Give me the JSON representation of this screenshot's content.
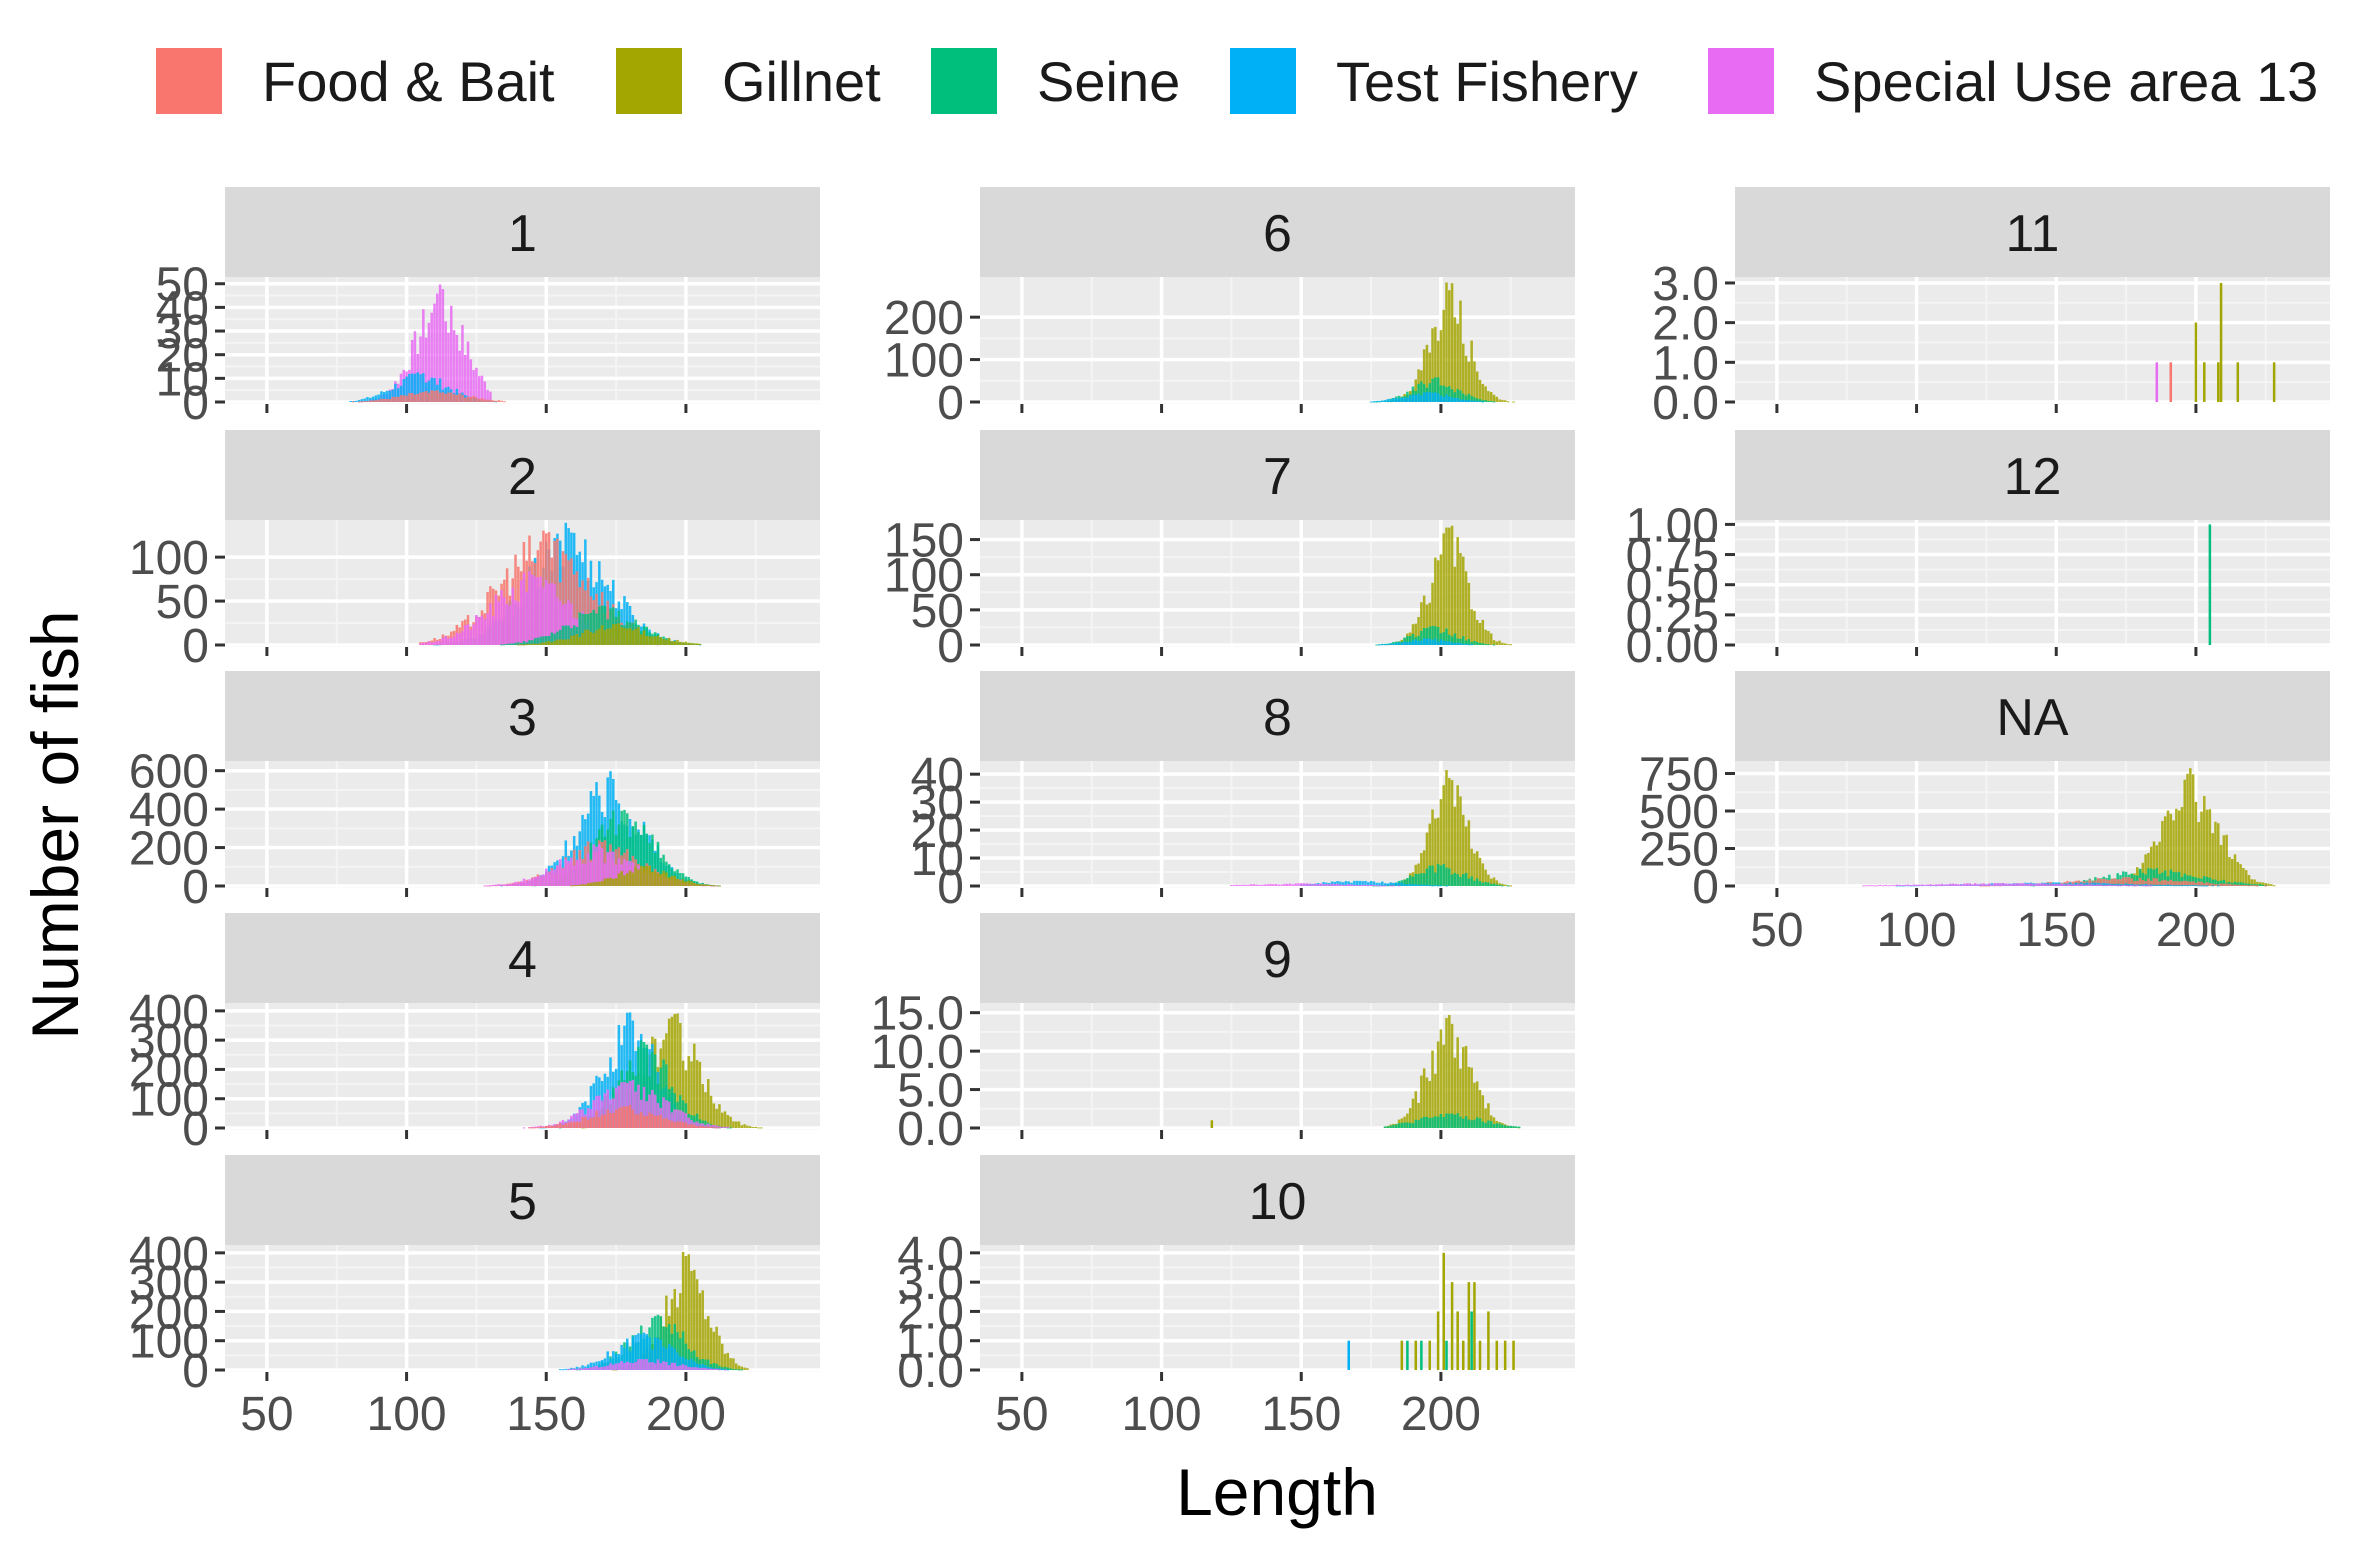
{
  "chart_data": {
    "type": "bar",
    "xlabel": "Length",
    "ylabel": "Number of fish",
    "legend_position": "top",
    "grid": true,
    "panel_background": "#ebebeb",
    "strip_background": "#d9d9d9",
    "series": [
      {
        "name": "Food & Bait",
        "color": "#F8766D"
      },
      {
        "name": "Gillnet",
        "color": "#A3A500"
      },
      {
        "name": "Seine",
        "color": "#00BF7D"
      },
      {
        "name": "Test Fishery",
        "color": "#00B0F6"
      },
      {
        "name": "Special Use area 13",
        "color": "#E76BF3"
      }
    ],
    "x_ticks": [
      "50",
      "100",
      "150",
      "200"
    ],
    "xlim": [
      35,
      248
    ],
    "panels": [
      {
        "label": "1",
        "ylim": [
          0,
          52
        ],
        "y_ticks": [
          {
            "v": 0,
            "t": "0"
          },
          {
            "v": 10,
            "t": "10"
          },
          {
            "v": 20,
            "t": "20"
          },
          {
            "v": 30,
            "t": "30"
          },
          {
            "v": 40,
            "t": "40"
          },
          {
            "v": 50,
            "t": "50"
          }
        ],
        "groups": [
          {
            "series": "Special Use area 13",
            "center": 112,
            "sd": 9,
            "peak": 50,
            "xmin": 80,
            "xmax": 130
          },
          {
            "series": "Test Fishery",
            "center": 105,
            "sd": 10,
            "peak": 13,
            "xmin": 80,
            "xmax": 170
          },
          {
            "series": "Food & Bait",
            "center": 110,
            "sd": 12,
            "peak": 5,
            "xmin": 80,
            "xmax": 135
          }
        ]
      },
      {
        "label": "2",
        "ylim": [
          0,
          140
        ],
        "y_ticks": [
          {
            "v": 0,
            "t": "0"
          },
          {
            "v": 50,
            "t": "50"
          },
          {
            "v": 100,
            "t": "100"
          }
        ],
        "groups": [
          {
            "series": "Test Fishery",
            "center": 158,
            "sd": 15,
            "peak": 140,
            "xmin": 110,
            "xmax": 205
          },
          {
            "series": "Food & Bait",
            "center": 150,
            "sd": 17,
            "peak": 135,
            "xmin": 105,
            "xmax": 200
          },
          {
            "series": "Special Use area 13",
            "center": 145,
            "sd": 15,
            "peak": 85,
            "xmin": 105,
            "xmax": 190
          },
          {
            "series": "Seine",
            "center": 170,
            "sd": 13,
            "peak": 45,
            "xmin": 130,
            "xmax": 205
          },
          {
            "series": "Gillnet",
            "center": 175,
            "sd": 13,
            "peak": 25,
            "xmin": 140,
            "xmax": 205
          }
        ]
      },
      {
        "label": "3",
        "ylim": [
          0,
          640
        ],
        "y_ticks": [
          {
            "v": 0,
            "t": "0"
          },
          {
            "v": 200,
            "t": "200"
          },
          {
            "v": 400,
            "t": "400"
          },
          {
            "v": 600,
            "t": "600"
          }
        ],
        "groups": [
          {
            "series": "Test Fishery",
            "center": 173,
            "sd": 12,
            "peak": 600,
            "xmin": 120,
            "xmax": 215
          },
          {
            "series": "Seine",
            "center": 178,
            "sd": 11,
            "peak": 420,
            "xmin": 120,
            "xmax": 215
          },
          {
            "series": "Food & Bait",
            "center": 170,
            "sd": 14,
            "peak": 250,
            "xmin": 110,
            "xmax": 215
          },
          {
            "series": "Special Use area 13",
            "center": 168,
            "sd": 14,
            "peak": 220,
            "xmin": 110,
            "xmax": 210
          },
          {
            "series": "Gillnet",
            "center": 185,
            "sd": 10,
            "peak": 110,
            "xmin": 150,
            "xmax": 215
          }
        ]
      },
      {
        "label": "4",
        "ylim": [
          0,
          420
        ],
        "y_ticks": [
          {
            "v": 0,
            "t": "0"
          },
          {
            "v": 100,
            "t": "100"
          },
          {
            "v": 200,
            "t": "200"
          },
          {
            "v": 300,
            "t": "300"
          },
          {
            "v": 400,
            "t": "400"
          }
        ],
        "groups": [
          {
            "series": "Gillnet",
            "center": 195,
            "sd": 10,
            "peak": 400,
            "xmin": 150,
            "xmax": 232
          },
          {
            "series": "Test Fishery",
            "center": 180,
            "sd": 10,
            "peak": 400,
            "xmin": 130,
            "xmax": 225
          },
          {
            "series": "Seine",
            "center": 185,
            "sd": 10,
            "peak": 300,
            "xmin": 130,
            "xmax": 225
          },
          {
            "series": "Special Use area 13",
            "center": 180,
            "sd": 13,
            "peak": 170,
            "xmin": 130,
            "xmax": 215
          },
          {
            "series": "Food & Bait",
            "center": 178,
            "sd": 13,
            "peak": 80,
            "xmin": 130,
            "xmax": 215
          }
        ]
      },
      {
        "label": "5",
        "ylim": [
          0,
          420
        ],
        "y_ticks": [
          {
            "v": 0,
            "t": "0"
          },
          {
            "v": 100,
            "t": "100"
          },
          {
            "v": 200,
            "t": "200"
          },
          {
            "v": 300,
            "t": "300"
          },
          {
            "v": 400,
            "t": "400"
          }
        ],
        "groups": [
          {
            "series": "Gillnet",
            "center": 200,
            "sd": 8,
            "peak": 410,
            "xmin": 165,
            "xmax": 222
          },
          {
            "series": "Seine",
            "center": 190,
            "sd": 10,
            "peak": 200,
            "xmin": 150,
            "xmax": 222
          },
          {
            "series": "Test Fishery",
            "center": 185,
            "sd": 11,
            "peak": 130,
            "xmin": 150,
            "xmax": 215
          },
          {
            "series": "Special Use area 13",
            "center": 185,
            "sd": 12,
            "peak": 40,
            "xmin": 150,
            "xmax": 215
          }
        ]
      },
      {
        "label": "6",
        "ylim": [
          0,
          290
        ],
        "y_ticks": [
          {
            "v": 0,
            "t": "0"
          },
          {
            "v": 100,
            "t": "100"
          },
          {
            "v": 200,
            "t": "200"
          }
        ],
        "groups": [
          {
            "series": "Gillnet",
            "center": 203,
            "sd": 7,
            "peak": 285,
            "xmin": 165,
            "xmax": 228
          },
          {
            "series": "Seine",
            "center": 198,
            "sd": 8,
            "peak": 60,
            "xmin": 160,
            "xmax": 228
          },
          {
            "series": "Test Fishery",
            "center": 195,
            "sd": 9,
            "peak": 25,
            "xmin": 160,
            "xmax": 225
          }
        ]
      },
      {
        "label": "7",
        "ylim": [
          0,
          175
        ],
        "y_ticks": [
          {
            "v": 0,
            "t": "0"
          },
          {
            "v": 50,
            "t": "50"
          },
          {
            "v": 100,
            "t": "100"
          },
          {
            "v": 150,
            "t": "150"
          }
        ],
        "groups": [
          {
            "series": "Gillnet",
            "center": 203,
            "sd": 7,
            "peak": 170,
            "xmin": 165,
            "xmax": 228
          },
          {
            "series": "Seine",
            "center": 198,
            "sd": 8,
            "peak": 28,
            "xmin": 165,
            "xmax": 228
          },
          {
            "series": "Test Fishery",
            "center": 195,
            "sd": 8,
            "peak": 10,
            "xmin": 165,
            "xmax": 225
          }
        ]
      },
      {
        "label": "8",
        "ylim": [
          0,
          44
        ],
        "y_ticks": [
          {
            "v": 0,
            "t": "0"
          },
          {
            "v": 10,
            "t": "10"
          },
          {
            "v": 20,
            "t": "20"
          },
          {
            "v": 30,
            "t": "30"
          },
          {
            "v": 40,
            "t": "40"
          }
        ],
        "groups": [
          {
            "series": "Gillnet",
            "center": 203,
            "sd": 7,
            "peak": 42,
            "xmin": 172,
            "xmax": 230
          },
          {
            "series": "Seine",
            "center": 200,
            "sd": 9,
            "peak": 8,
            "xmin": 170,
            "xmax": 228
          },
          {
            "series": "Test Fishery",
            "center": 170,
            "sd": 15,
            "peak": 2,
            "xmin": 150,
            "xmax": 215
          },
          {
            "series": "Special Use area 13",
            "center": 150,
            "sd": 20,
            "peak": 1,
            "xmin": 125,
            "xmax": 200
          }
        ]
      },
      {
        "label": "9",
        "ylim": [
          0,
          16
        ],
        "y_ticks": [
          {
            "v": 0,
            "t": "0.0"
          },
          {
            "v": 5,
            "t": "5.0"
          },
          {
            "v": 10,
            "t": "10.0"
          },
          {
            "v": 15,
            "t": "15.0"
          }
        ],
        "groups": [
          {
            "series": "Gillnet",
            "center": 203,
            "sd": 8,
            "peak": 15,
            "xmin": 180,
            "xmax": 228
          },
          {
            "series": "Seine",
            "center": 203,
            "sd": 12,
            "peak": 2,
            "xmin": 180,
            "xmax": 228
          }
        ],
        "extra_bars": [
          {
            "series": "Gillnet",
            "x": 118,
            "y": 1
          }
        ]
      },
      {
        "label": "10",
        "ylim": [
          0,
          4.2
        ],
        "y_ticks": [
          {
            "v": 0,
            "t": "0.0"
          },
          {
            "v": 1,
            "t": "1.0"
          },
          {
            "v": 2,
            "t": "2.0"
          },
          {
            "v": 3,
            "t": "3.0"
          },
          {
            "v": 4,
            "t": "4.0"
          }
        ],
        "bars": [
          {
            "series": "Test Fishery",
            "x": 167,
            "y": 1
          },
          {
            "series": "Gillnet",
            "x": 186,
            "y": 1
          },
          {
            "series": "Seine",
            "x": 188,
            "y": 1
          },
          {
            "series": "Gillnet",
            "x": 191,
            "y": 1
          },
          {
            "series": "Seine",
            "x": 193,
            "y": 1
          },
          {
            "series": "Gillnet",
            "x": 196,
            "y": 1
          },
          {
            "series": "Gillnet",
            "x": 199,
            "y": 2
          },
          {
            "series": "Gillnet",
            "x": 201,
            "y": 4
          },
          {
            "series": "Seine",
            "x": 202,
            "y": 1
          },
          {
            "series": "Gillnet",
            "x": 204,
            "y": 3
          },
          {
            "series": "Gillnet",
            "x": 206,
            "y": 2
          },
          {
            "series": "Gillnet",
            "x": 208,
            "y": 1
          },
          {
            "series": "Gillnet",
            "x": 210,
            "y": 3
          },
          {
            "series": "Seine",
            "x": 211,
            "y": 2
          },
          {
            "series": "Gillnet",
            "x": 212,
            "y": 3
          },
          {
            "series": "Gillnet",
            "x": 214,
            "y": 1
          },
          {
            "series": "Gillnet",
            "x": 217,
            "y": 2
          },
          {
            "series": "Gillnet",
            "x": 220,
            "y": 1
          },
          {
            "series": "Gillnet",
            "x": 223,
            "y": 1
          },
          {
            "series": "Gillnet",
            "x": 226,
            "y": 1
          }
        ]
      },
      {
        "label": "11",
        "ylim": [
          0,
          3.1
        ],
        "y_ticks": [
          {
            "v": 0,
            "t": "0.0"
          },
          {
            "v": 1,
            "t": "1.0"
          },
          {
            "v": 2,
            "t": "2.0"
          },
          {
            "v": 3,
            "t": "3.0"
          }
        ],
        "bars": [
          {
            "series": "Special Use area 13",
            "x": 186,
            "y": 1
          },
          {
            "series": "Food & Bait",
            "x": 191,
            "y": 1
          },
          {
            "series": "Gillnet",
            "x": 200,
            "y": 2
          },
          {
            "series": "Gillnet",
            "x": 203,
            "y": 1
          },
          {
            "series": "Gillnet",
            "x": 208,
            "y": 1
          },
          {
            "series": "Gillnet",
            "x": 209,
            "y": 3
          },
          {
            "series": "Gillnet",
            "x": 215,
            "y": 1
          },
          {
            "series": "Gillnet",
            "x": 228,
            "y": 1
          }
        ]
      },
      {
        "label": "12",
        "ylim": [
          0,
          1.02
        ],
        "y_ticks": [
          {
            "v": 0,
            "t": "0.00"
          },
          {
            "v": 0.25,
            "t": "0.25"
          },
          {
            "v": 0.5,
            "t": "0.50"
          },
          {
            "v": 0.75,
            "t": "0.75"
          },
          {
            "v": 1,
            "t": "1.00"
          }
        ],
        "bars": [
          {
            "series": "Seine",
            "x": 205,
            "y": 1
          }
        ]
      },
      {
        "label": "NA",
        "ylim": [
          0,
          820
        ],
        "y_ticks": [
          {
            "v": 0,
            "t": "0"
          },
          {
            "v": 250,
            "t": "250"
          },
          {
            "v": 500,
            "t": "500"
          },
          {
            "v": 750,
            "t": "750"
          }
        ],
        "groups": [
          {
            "series": "Gillnet",
            "center": 198,
            "sd": 10,
            "peak": 800,
            "xmin": 140,
            "xmax": 228
          },
          {
            "series": "Seine",
            "center": 185,
            "sd": 18,
            "peak": 120,
            "xmin": 120,
            "xmax": 225
          },
          {
            "series": "Food & Bait",
            "center": 175,
            "sd": 22,
            "peak": 60,
            "xmin": 100,
            "xmax": 225
          },
          {
            "series": "Test Fishery",
            "center": 150,
            "sd": 30,
            "peak": 25,
            "xmin": 80,
            "xmax": 220
          },
          {
            "series": "Special Use area 13",
            "center": 130,
            "sd": 30,
            "peak": 20,
            "xmin": 80,
            "xmax": 200
          }
        ]
      }
    ]
  }
}
